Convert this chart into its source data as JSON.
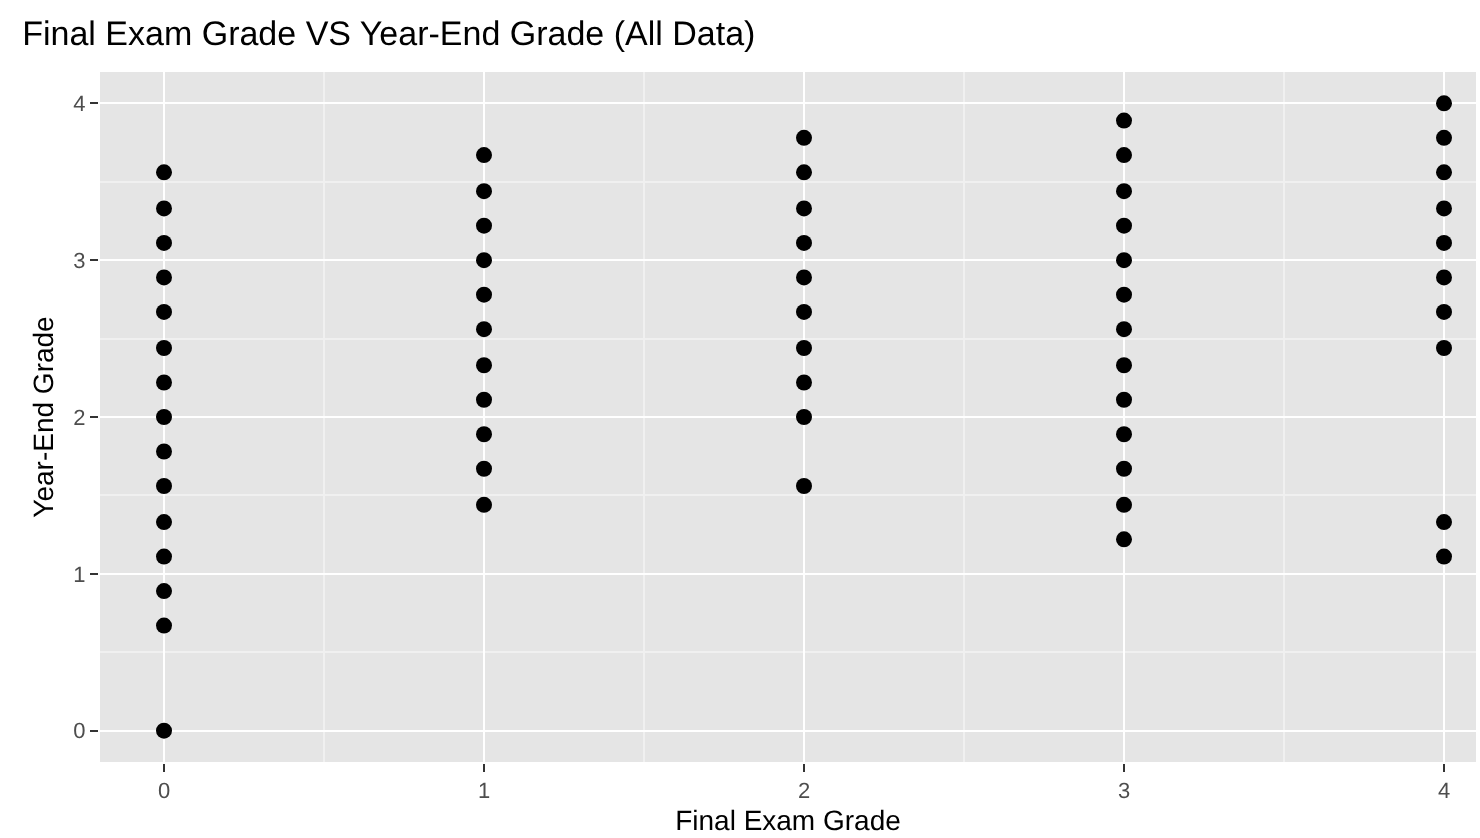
{
  "chart_data": {
    "type": "scatter",
    "title": "Final Exam Grade VS Year-End Grade (All Data)",
    "xlabel": "Final Exam Grade",
    "ylabel": "Year-End Grade",
    "x": [
      0,
      0,
      0,
      0,
      0,
      0,
      0,
      0,
      0,
      0,
      0,
      0,
      0,
      0,
      0,
      1,
      1,
      1,
      1,
      1,
      1,
      1,
      1,
      1,
      1,
      1,
      2,
      2,
      2,
      2,
      2,
      2,
      2,
      2,
      2,
      2,
      3,
      3,
      3,
      3,
      3,
      3,
      3,
      3,
      3,
      3,
      3,
      3,
      3,
      4,
      4,
      4,
      4,
      4,
      4,
      4,
      4,
      4,
      4
    ],
    "values": [
      0,
      0.67,
      0.89,
      1.11,
      1.33,
      1.56,
      1.78,
      2.0,
      2.22,
      2.44,
      2.67,
      2.89,
      3.11,
      3.33,
      3.56,
      1.44,
      1.67,
      1.89,
      2.11,
      2.33,
      2.56,
      2.78,
      3.0,
      3.22,
      3.44,
      3.67,
      1.56,
      2.0,
      2.22,
      2.44,
      2.67,
      2.89,
      3.11,
      3.33,
      3.56,
      3.78,
      1.22,
      1.44,
      1.67,
      1.89,
      2.11,
      2.33,
      2.56,
      2.78,
      3.0,
      3.22,
      3.44,
      3.67,
      3.89,
      1.11,
      1.33,
      2.44,
      2.67,
      2.89,
      3.11,
      3.33,
      3.56,
      3.78,
      4.0
    ],
    "color": "#000000",
    "marker": "circle",
    "xlim": [
      -0.2,
      4.1
    ],
    "xticks": [
      0,
      1,
      2,
      3,
      4
    ],
    "ylim": [
      -0.2,
      4.2
    ],
    "yticks": [
      0,
      1,
      2,
      3,
      4
    ],
    "grid": true,
    "legend": false
  }
}
